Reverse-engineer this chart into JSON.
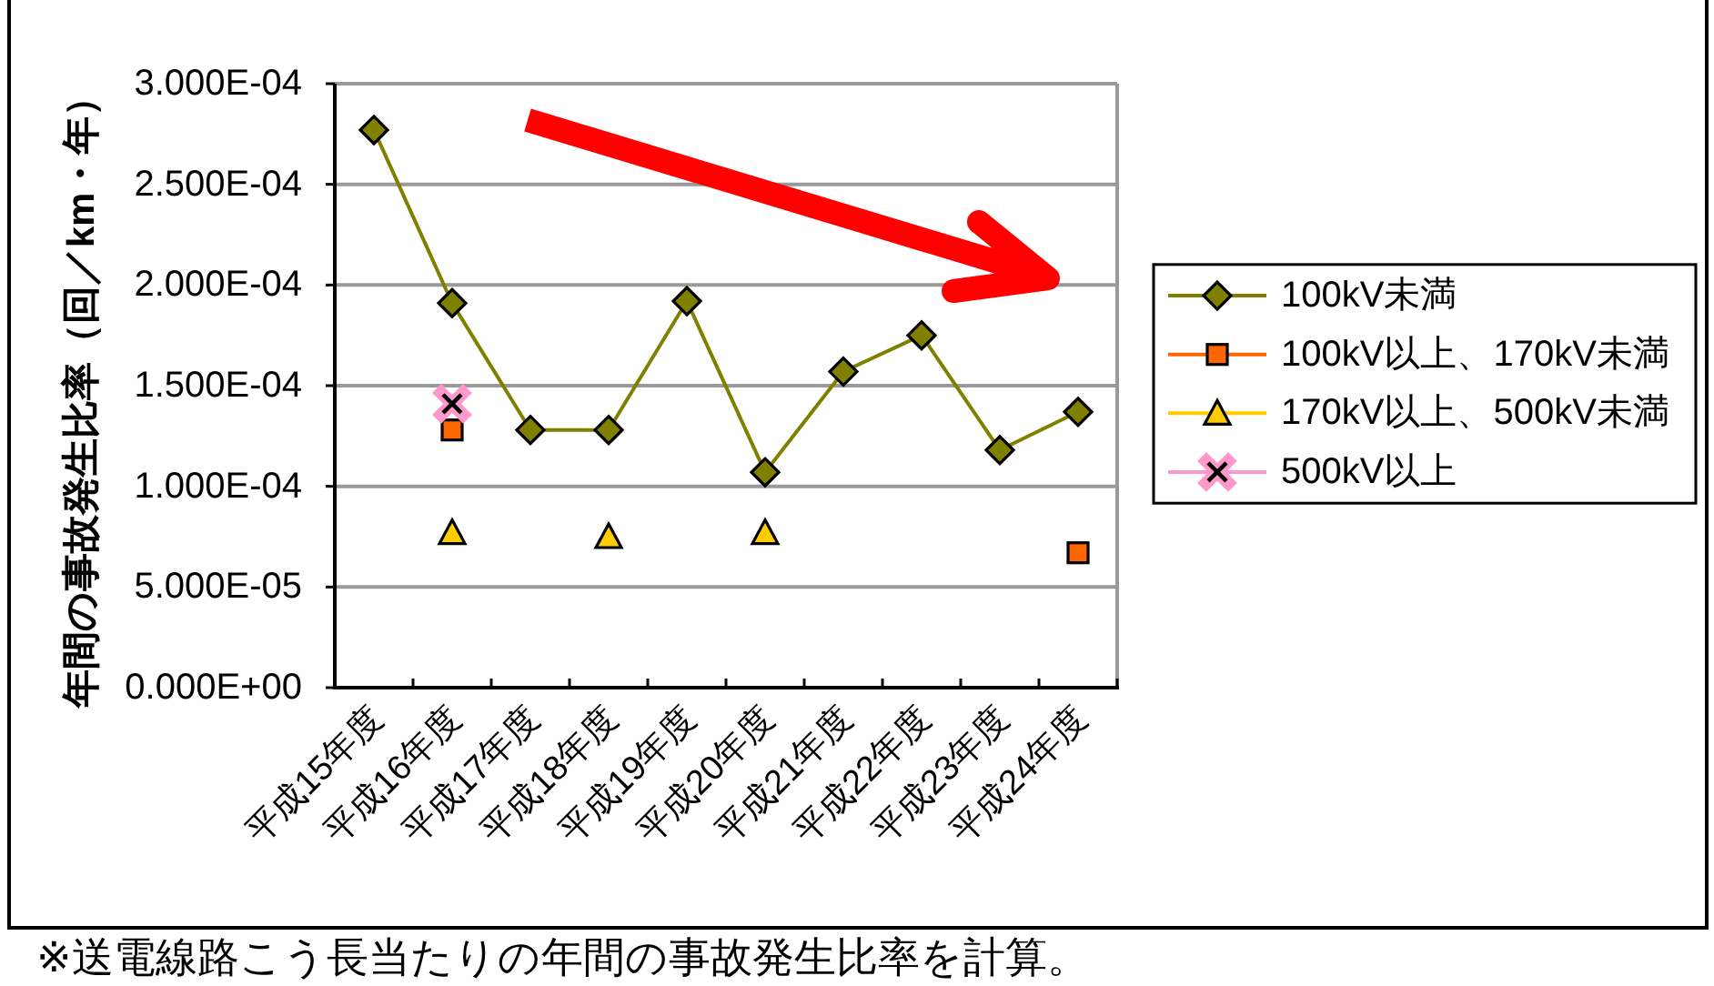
{
  "chart_data": {
    "type": "line",
    "ylabel": "年間の事故発生比率（回／km・年）",
    "categories": [
      "平成15年度",
      "平成16年度",
      "平成17年度",
      "平成18年度",
      "平成19年度",
      "平成20年度",
      "平成21年度",
      "平成22年度",
      "平成23年度",
      "平成24年度"
    ],
    "series": [
      {
        "name": "100kV未満",
        "color": "#808000",
        "marker": "diamond",
        "values": [
          0.000277,
          0.000191,
          0.000128,
          0.000128,
          0.000192,
          0.000107,
          0.000157,
          0.000175,
          0.000118,
          0.000137
        ]
      },
      {
        "name": "100kV以上、170kV未満",
        "type": "scatter",
        "color": "#ff6600",
        "marker": "square",
        "values": [
          null,
          0.000128,
          null,
          null,
          null,
          null,
          null,
          null,
          null,
          6.7e-05
        ]
      },
      {
        "name": "170kV以上、500kV未満",
        "type": "scatter",
        "color": "#ffcc00",
        "marker": "triangle",
        "values": [
          null,
          7.7e-05,
          null,
          7.5e-05,
          null,
          7.7e-05,
          null,
          null,
          null,
          null
        ]
      },
      {
        "name": "500kV以上",
        "type": "scatter",
        "color": "#ff99cc",
        "marker": "cross",
        "values": [
          null,
          0.000141,
          null,
          null,
          null,
          null,
          null,
          null,
          null,
          null
        ]
      }
    ],
    "ylim": [
      0,
      0.0003
    ],
    "yticks": [
      {
        "value": 0,
        "label": "0.000E+00"
      },
      {
        "value": 5e-05,
        "label": "5.000E-05"
      },
      {
        "value": 0.0001,
        "label": "1.000E-04"
      },
      {
        "value": 0.00015,
        "label": "1.500E-04"
      },
      {
        "value": 0.0002,
        "label": "2.000E-04"
      },
      {
        "value": 0.00025,
        "label": "2.500E-04"
      },
      {
        "value": 0.0003,
        "label": "3.000E-04"
      }
    ],
    "grid": "y",
    "legend": "right",
    "annotations": [
      "※送電線路こう長当たりの年間の事故発生比率を計算。"
    ]
  }
}
